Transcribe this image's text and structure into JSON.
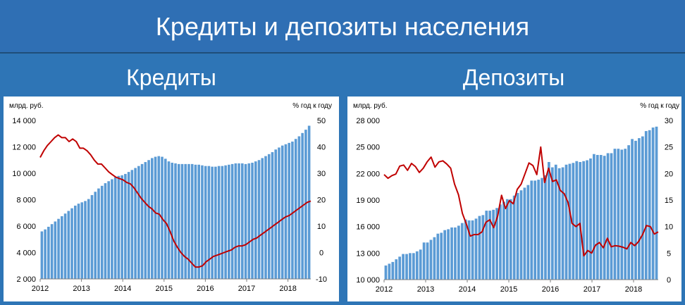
{
  "title": "Кредиты и депозиты населения",
  "panels": {
    "left_title": "Кредиты",
    "right_title": "Депозиты"
  },
  "colors": {
    "background": "#2e75b6",
    "bars": "#5b9bd5",
    "line": "#c00000"
  },
  "chart_data": [
    {
      "type": "bar",
      "title": "Кредиты",
      "ylabel": "млрд. руб.",
      "y2label": "% год к году",
      "ylim": [
        2000,
        14000
      ],
      "yticks": [
        "2 000",
        "4 000",
        "6 000",
        "8 000",
        "10 000",
        "12 000",
        "14 000"
      ],
      "y2lim": [
        -10,
        50
      ],
      "y2ticks": [
        "-10",
        "0",
        "10",
        "20",
        "30",
        "40",
        "50"
      ],
      "xticks": [
        "2012",
        "2013",
        "2014",
        "2015",
        "2016",
        "2017",
        "2018"
      ],
      "grid": false,
      "series": [
        {
          "kind": "bar",
          "axis": "left",
          "values": [
            5600,
            5750,
            5950,
            6150,
            6350,
            6550,
            6750,
            6950,
            7150,
            7350,
            7550,
            7700,
            7800,
            7900,
            8050,
            8350,
            8600,
            8850,
            9050,
            9250,
            9400,
            9550,
            9700,
            9800,
            9850,
            9950,
            10100,
            10250,
            10400,
            10550,
            10700,
            10850,
            11000,
            11150,
            11250,
            11300,
            11250,
            11100,
            10900,
            10800,
            10750,
            10700,
            10700,
            10700,
            10700,
            10700,
            10650,
            10650,
            10600,
            10550,
            10550,
            10500,
            10500,
            10550,
            10550,
            10600,
            10650,
            10700,
            10750,
            10750,
            10750,
            10700,
            10750,
            10800,
            10900,
            11000,
            11150,
            11300,
            11450,
            11600,
            11800,
            11950,
            12100,
            12200,
            12300,
            12400,
            12600,
            12800,
            13050,
            13300,
            13600
          ]
        },
        {
          "kind": "line",
          "axis": "right",
          "values": [
            36,
            38.5,
            40.5,
            42,
            43.5,
            44.5,
            43.5,
            43.5,
            42,
            43,
            42,
            39.5,
            39.5,
            38.5,
            37,
            35,
            33.5,
            33.5,
            32,
            30.5,
            29.5,
            28.5,
            28,
            27.5,
            26.5,
            26,
            24.5,
            22.5,
            20.5,
            19,
            17.5,
            16.5,
            15,
            14.5,
            12.5,
            11,
            8,
            4.5,
            2,
            0,
            -1.5,
            -2.5,
            -4,
            -5.5,
            -5.5,
            -5,
            -3.5,
            -2.5,
            -1.5,
            -1,
            -0.5,
            0,
            0.5,
            1,
            2,
            2.5,
            2.5,
            3,
            4,
            5,
            5.5,
            6.5,
            7.5,
            8.5,
            9.5,
            10.5,
            11.5,
            12.5,
            13.5,
            14,
            15,
            16,
            17,
            18,
            19,
            19.5
          ]
        }
      ]
    },
    {
      "type": "bar",
      "title": "Депозиты",
      "ylabel": "млрд. руб.",
      "y2label": "% год к году",
      "ylim": [
        10000,
        28000
      ],
      "yticks": [
        "10 000",
        "13 000",
        "16 000",
        "19 000",
        "22 000",
        "25 000",
        "28 000"
      ],
      "y2lim": [
        0,
        30
      ],
      "y2ticks": [
        "0",
        "5",
        "10",
        "15",
        "20",
        "25",
        "30"
      ],
      "xticks": [
        "2012",
        "2013",
        "2014",
        "2015",
        "2016",
        "2017",
        "2018"
      ],
      "grid": false,
      "series": [
        {
          "kind": "bar",
          "axis": "left",
          "values": [
            11600,
            11800,
            12000,
            12300,
            12600,
            12900,
            12900,
            13000,
            13000,
            13200,
            13400,
            14200,
            14200,
            14500,
            14800,
            15200,
            15300,
            15600,
            15700,
            15900,
            15900,
            16100,
            16400,
            16800,
            16700,
            16700,
            16900,
            17200,
            17300,
            17800,
            17800,
            17900,
            18100,
            18500,
            18800,
            19100,
            19100,
            19500,
            19800,
            20100,
            20400,
            20700,
            21200,
            21200,
            21300,
            21500,
            21800,
            23300,
            22700,
            23000,
            22600,
            22700,
            23000,
            23100,
            23200,
            23400,
            23300,
            23400,
            23500,
            23700,
            24200,
            24100,
            24100,
            24000,
            24300,
            24300,
            24800,
            24800,
            24700,
            24800,
            25200,
            25900,
            25700,
            26000,
            26200,
            26800,
            26900,
            27200,
            27300
          ]
        },
        {
          "kind": "line",
          "axis": "right",
          "values": [
            19.8,
            19.1,
            19.6,
            19.9,
            21.4,
            21.6,
            20.6,
            21.9,
            21.3,
            20.2,
            21,
            22.2,
            23.1,
            21.2,
            22.2,
            22.4,
            21.8,
            21,
            18,
            16,
            12.5,
            10.5,
            8.2,
            8.5,
            8.5,
            9,
            10.8,
            11.3,
            9.8,
            12,
            15.9,
            13.4,
            14.9,
            14.3,
            17,
            18,
            20,
            22,
            21.5,
            19.8,
            25,
            18.3,
            21,
            18.5,
            18.8,
            16.8,
            16.2,
            14.5,
            10.6,
            10,
            10.6,
            4.5,
            5.5,
            5,
            6.5,
            7,
            6,
            7.8,
            6.2,
            6.4,
            6.3,
            6.1,
            5.8,
            7,
            6.4,
            7.2,
            8.5,
            10.2,
            10,
            8.6,
            9
          ]
        }
      ]
    }
  ]
}
